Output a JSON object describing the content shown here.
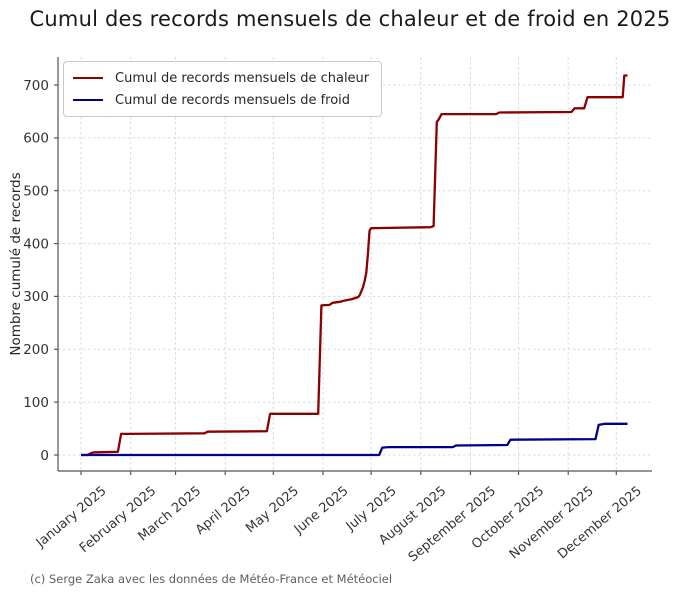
{
  "footer": "(c) Serge Zaka avec les données de Météo-France et Météociel",
  "style": {
    "grid_color": "#d9d9d9",
    "spine_color": "#555555",
    "tick_label_color": "#333333"
  },
  "chart_data": {
    "type": "line",
    "title": "Cumul des records mensuels de chaleur et de froid en 2025",
    "xlabel": "",
    "ylabel": "Nombre cumulé de records",
    "ylim": [
      0,
      700
    ],
    "y_ticks": [
      0,
      100,
      200,
      300,
      400,
      500,
      600,
      700
    ],
    "categories": [
      "January 2025",
      "February 2025",
      "March 2025",
      "April 2025",
      "May 2025",
      "June 2025",
      "July 2025",
      "August 2025",
      "September 2025",
      "October 2025",
      "November 2025",
      "December 2025"
    ],
    "x_tick_rotation": 40,
    "grid": "dashed",
    "legend_position": "upper left",
    "series": [
      {
        "id": "chaleur",
        "name": "Cumul de records mensuels de chaleur",
        "color": "#8B0000",
        "points": [
          [
            "2025-01-01",
            0
          ],
          [
            "2025-01-05",
            0
          ],
          [
            "2025-01-07",
            3
          ],
          [
            "2025-01-09",
            5
          ],
          [
            "2025-01-24",
            6
          ],
          [
            "2025-01-26",
            40
          ],
          [
            "2025-03-19",
            41
          ],
          [
            "2025-03-21",
            44
          ],
          [
            "2025-04-27",
            45
          ],
          [
            "2025-04-29",
            78
          ],
          [
            "2025-05-29",
            78
          ],
          [
            "2025-05-31",
            283
          ],
          [
            "2025-06-05",
            284
          ],
          [
            "2025-06-07",
            288
          ],
          [
            "2025-06-12",
            290
          ],
          [
            "2025-06-14",
            292
          ],
          [
            "2025-06-19",
            295
          ],
          [
            "2025-06-23",
            299
          ],
          [
            "2025-06-24",
            303
          ],
          [
            "2025-06-26",
            318
          ],
          [
            "2025-06-27",
            330
          ],
          [
            "2025-06-28",
            345
          ],
          [
            "2025-06-29",
            380
          ],
          [
            "2025-06-30",
            424
          ],
          [
            "2025-07-01",
            429
          ],
          [
            "2025-08-07",
            431
          ],
          [
            "2025-08-09",
            433
          ],
          [
            "2025-08-11",
            630
          ],
          [
            "2025-08-12",
            634
          ],
          [
            "2025-08-14",
            645
          ],
          [
            "2025-09-17",
            645
          ],
          [
            "2025-09-19",
            648
          ],
          [
            "2025-11-03",
            649
          ],
          [
            "2025-11-05",
            656
          ],
          [
            "2025-11-11",
            656
          ],
          [
            "2025-11-13",
            677
          ],
          [
            "2025-12-05",
            677
          ],
          [
            "2025-12-06",
            718
          ],
          [
            "2025-12-08",
            718
          ]
        ]
      },
      {
        "id": "froid",
        "name": "Cumul de records mensuels de froid",
        "color": "#00008B",
        "points": [
          [
            "2025-01-01",
            0
          ],
          [
            "2025-07-06",
            0
          ],
          [
            "2025-07-08",
            14
          ],
          [
            "2025-07-12",
            15
          ],
          [
            "2025-08-21",
            15
          ],
          [
            "2025-08-23",
            18
          ],
          [
            "2025-09-24",
            19
          ],
          [
            "2025-09-26",
            29
          ],
          [
            "2025-11-18",
            30
          ],
          [
            "2025-11-20",
            57
          ],
          [
            "2025-11-24",
            59
          ],
          [
            "2025-12-08",
            59
          ]
        ]
      }
    ]
  }
}
